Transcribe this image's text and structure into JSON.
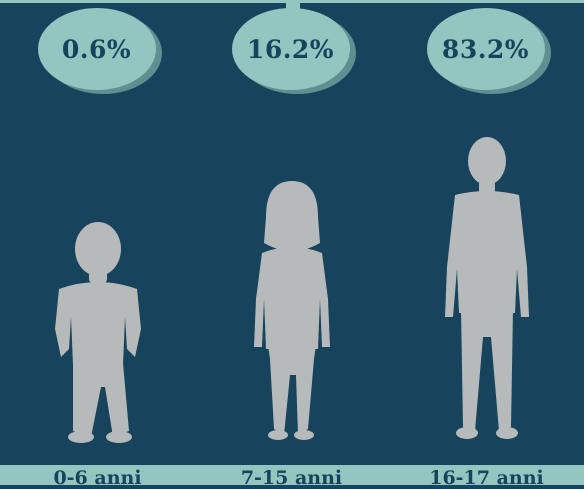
{
  "colors": {
    "background": "#17435c",
    "disc": "#93c5c1",
    "disc_shadow": "#5f8f91",
    "silhouette": "#b7babb",
    "label_bar": "#93c5c1",
    "text": "#17435c"
  },
  "icons": [
    "toddler-silhouette-icon",
    "girl-silhouette-icon",
    "teen-silhouette-icon"
  ],
  "chart_data": {
    "type": "bar",
    "categories": [
      "0-6 anni",
      "7-15 anni",
      "16-17 anni"
    ],
    "values": [
      0.6,
      16.2,
      83.2
    ],
    "value_labels": [
      "0.6%",
      "16.2%",
      "83.2%"
    ],
    "unit": "%"
  }
}
